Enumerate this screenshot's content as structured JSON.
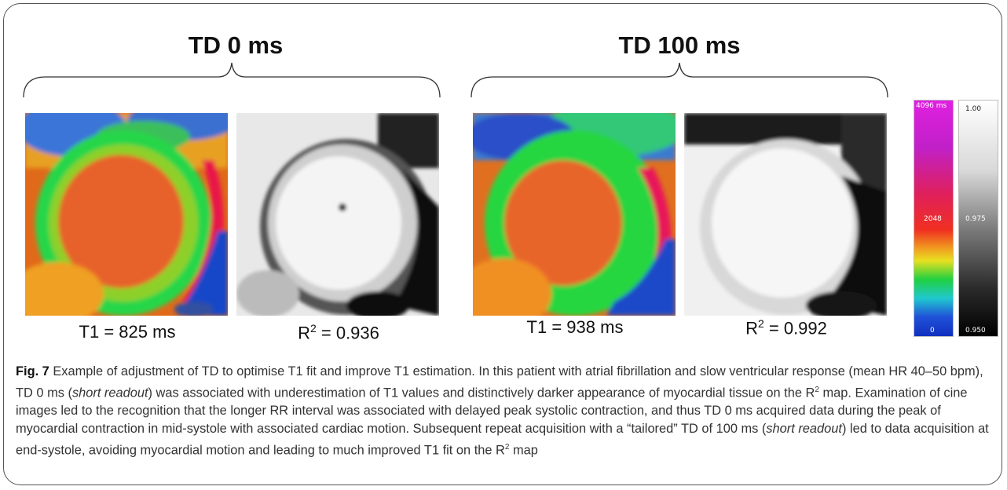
{
  "figure": {
    "groups": [
      {
        "title": "TD 0 ms",
        "t1_prefix": "T1 = ",
        "t1_value": "825 ms",
        "r2_prefix": "R",
        "r2_sup": "2",
        "r2_value": " = 0.936"
      },
      {
        "title": "TD 100 ms",
        "t1_prefix": "T1 = ",
        "t1_value": "938 ms",
        "r2_prefix": "R",
        "r2_sup": "2",
        "r2_value": " = 0.992"
      }
    ],
    "t1_scale": {
      "max": "4096 ms",
      "mid": "2048",
      "min": "0"
    },
    "r2_scale": {
      "max": "1.00",
      "mid": "0.975",
      "min": "0.950"
    },
    "colors": {
      "frame": "#555555",
      "text": "#333333"
    }
  },
  "caption": {
    "label": "Fig. 7",
    "t1": " Example of adjustment of TD to optimise T1 fit and improve T1 estimation. In this patient with atrial fibrillation and slow ventricular response (mean HR 40–50 bpm), TD 0 ms (",
    "i1": "short readout",
    "t2": ") was associated with underestimation of T1 values and distinctively darker appearance of myocardial tissue on the R",
    "sup1": "2",
    "t3": " map. Examination of cine images led to the recognition that the longer RR interval was associated with delayed peak systolic contraction, and thus TD 0 ms acquired data during the peak of myocardial contraction in mid-systole with associated cardiac motion. Subsequent repeat acquisition with a “tailored” TD of 100 ms (",
    "i2": "short readout",
    "t4": ") led to data acquisition at end-systole, avoiding myocardial motion and leading to much improved T1 fit on the R",
    "sup2": "2",
    "t5": " map"
  }
}
